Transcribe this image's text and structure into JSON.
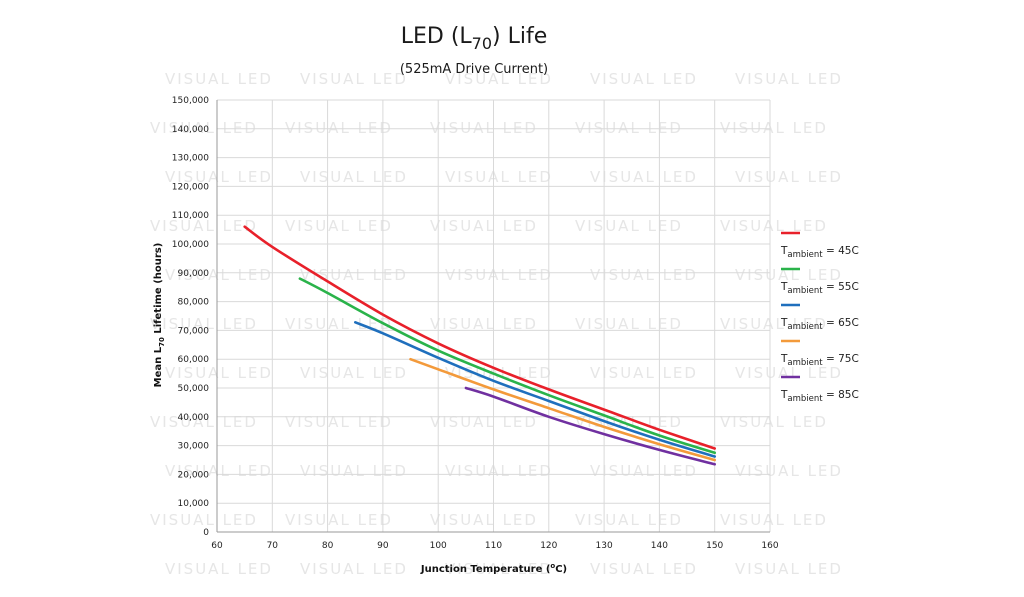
{
  "watermark_text": "VISUAL LED",
  "chart_data": {
    "type": "line",
    "title": "LED (L70) Life",
    "title_main": "LED (L",
    "title_sub": "70",
    "title_end": ") Life",
    "subtitle": "(525mA Drive Current)",
    "xlabel": "Junction Temperature (°C)",
    "xlabel_main": "Junction Temperature (",
    "xlabel_sup": "o",
    "xlabel_end": "C)",
    "ylabel": "Mean L70 Lifetime (hours)",
    "ylabel_main": "Mean L",
    "ylabel_sub": "70",
    "ylabel_end": " Lifetime (hours)",
    "xlim": [
      60,
      160
    ],
    "ylim": [
      0,
      150000
    ],
    "x_ticks": [
      60,
      70,
      80,
      90,
      100,
      110,
      120,
      130,
      140,
      150,
      160
    ],
    "x_tick_labels": [
      "60",
      "70",
      "80",
      "90",
      "100",
      "110",
      "120",
      "130",
      "140",
      "150",
      "160"
    ],
    "y_ticks": [
      0,
      10000,
      20000,
      30000,
      40000,
      50000,
      60000,
      70000,
      80000,
      90000,
      100000,
      110000,
      120000,
      130000,
      140000,
      150000
    ],
    "y_tick_labels": [
      "0",
      "10,000",
      "20,000",
      "30,000",
      "40,000",
      "50,000",
      "60,000",
      "70,000",
      "80,000",
      "90,000",
      "100,000",
      "110,000",
      "120,000",
      "130,000",
      "140,000",
      "150,000"
    ],
    "grid": true,
    "legend_position": "right",
    "series": [
      {
        "name": "Tambient = 45C",
        "label_T": "T",
        "label_sub": "ambient",
        "label_rest": " = 45C",
        "color": "#e8202a",
        "x": [
          65,
          70,
          80,
          90,
          100,
          110,
          120,
          130,
          140,
          150
        ],
        "y": [
          106000,
          99000,
          87000,
          75500,
          65500,
          57000,
          49500,
          42500,
          35500,
          29000
        ]
      },
      {
        "name": "Tambient = 55C",
        "label_T": "T",
        "label_sub": "ambient",
        "label_rest": " = 55C",
        "color": "#2ab34a",
        "x": [
          75,
          80,
          90,
          100,
          110,
          120,
          130,
          140,
          150
        ],
        "y": [
          88000,
          83000,
          72500,
          63000,
          55000,
          47500,
          40500,
          33500,
          27500
        ]
      },
      {
        "name": "Tambient = 65C",
        "label_T": "T",
        "label_sub": "ambient",
        "label_rest": " = 65C",
        "color": "#1f6fbd",
        "x": [
          85,
          90,
          100,
          110,
          120,
          130,
          140,
          150
        ],
        "y": [
          72800,
          69000,
          60500,
          52500,
          45500,
          38500,
          32000,
          26200
        ]
      },
      {
        "name": "Tambient = 75C",
        "label_T": "T",
        "label_sub": "ambient",
        "label_rest": " = 75C",
        "color": "#f39a3b",
        "x": [
          95,
          100,
          110,
          120,
          130,
          140,
          150
        ],
        "y": [
          60000,
          56500,
          49500,
          43000,
          36500,
          30500,
          25000
        ]
      },
      {
        "name": "Tambient = 85C",
        "label_T": "T",
        "label_sub": "ambient",
        "label_rest": " = 85C",
        "color": "#7030a0",
        "x": [
          105,
          110,
          120,
          130,
          140,
          150
        ],
        "y": [
          50000,
          47000,
          40000,
          34000,
          28500,
          23500
        ]
      }
    ]
  }
}
